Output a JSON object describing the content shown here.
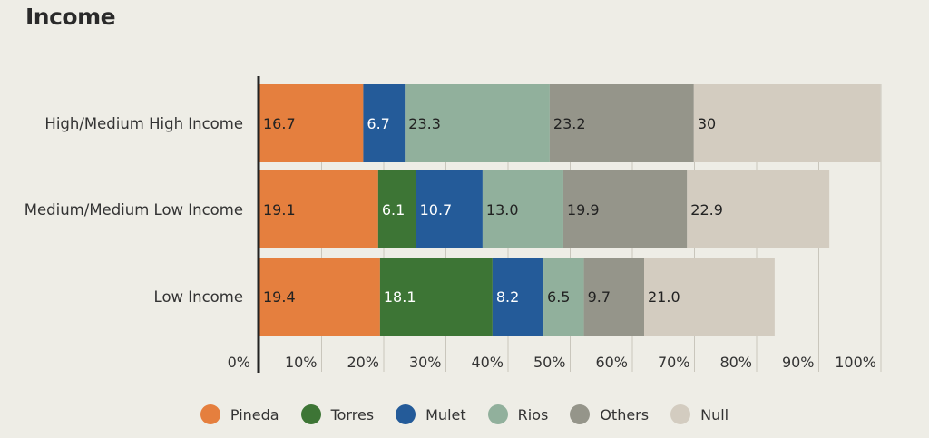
{
  "chart_data": {
    "type": "bar",
    "orientation": "horizontal",
    "stacked": true,
    "title": "Income",
    "categories": [
      "High/Medium High Income",
      "Medium/Medium Low Income",
      "Low Income"
    ],
    "series": [
      {
        "name": "Pineda",
        "color": "#e57f3e",
        "values": [
          16.7,
          19.1,
          19.4
        ],
        "labels": [
          "16.7",
          "19.1",
          "19.4"
        ],
        "label_color": "#222222"
      },
      {
        "name": "Torres",
        "color": "#3d7535",
        "values": [
          0,
          6.1,
          18.1
        ],
        "labels": [
          "",
          "6.1",
          "18.1"
        ],
        "label_color": "#ffffff"
      },
      {
        "name": "Mulet",
        "color": "#245b99",
        "values": [
          6.7,
          10.7,
          8.2
        ],
        "labels": [
          "6.7",
          "10.7",
          "8.2"
        ],
        "label_color": "#ffffff"
      },
      {
        "name": "Rios",
        "color": "#91b09c",
        "values": [
          23.3,
          13.0,
          6.5
        ],
        "labels": [
          "23.3",
          "13.0",
          "6.5"
        ],
        "label_color": "#222222"
      },
      {
        "name": "Others",
        "color": "#95958a",
        "values": [
          23.2,
          19.9,
          9.7
        ],
        "labels": [
          "23.2",
          "19.9",
          "9.7"
        ],
        "label_color": "#222222"
      },
      {
        "name": "Null",
        "color": "#d3ccc0",
        "values": [
          30,
          22.9,
          21.0
        ],
        "labels": [
          "30",
          "22.9",
          "21.0"
        ],
        "label_color": "#222222"
      }
    ],
    "x_ticks": [
      "0%",
      "10%",
      "20%",
      "30%",
      "40%",
      "50%",
      "60%",
      "70%",
      "80%",
      "90%",
      "100%"
    ],
    "xlim": [
      0,
      100
    ],
    "grid": true,
    "legend_position": "bottom"
  }
}
